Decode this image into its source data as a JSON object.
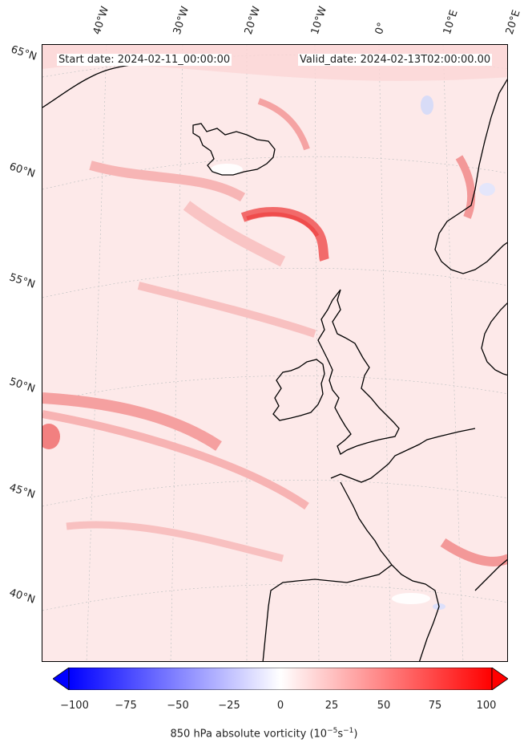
{
  "header": {
    "start_date": "Start date: 2024-02-11_00:00:00",
    "valid_date": "Valid_date: 2024-02-13T02:00:00.00"
  },
  "longitude_labels": [
    "40°W",
    "30°W",
    "20°W",
    "10°W",
    "0°",
    "10°E",
    "20°E"
  ],
  "latitude_labels": [
    "65°N",
    "60°N",
    "55°N",
    "50°N",
    "45°N",
    "40°N"
  ],
  "colorbar": {
    "ticks": [
      "−100",
      "−75",
      "−50",
      "−25",
      "0",
      "25",
      "50",
      "75",
      "100"
    ],
    "min": -100,
    "max": 100,
    "low_color": "#0000ff",
    "mid_color": "#ffffff",
    "high_color": "#ff0000",
    "label_prefix": "850 hPa absolute vorticity (10",
    "label_exp1": "−5",
    "label_mid": "s",
    "label_exp2": "−1",
    "label_suffix": ")"
  },
  "map": {
    "field": "850 hPa absolute vorticity",
    "base_color": "#fde9e9",
    "coastline_color": "#000000"
  }
}
